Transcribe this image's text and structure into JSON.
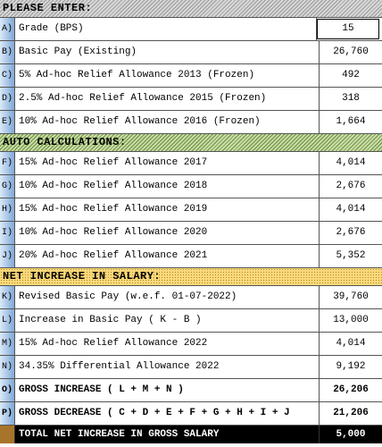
{
  "sections": [
    {
      "title": "PLEASE ENTER:",
      "style": "gray",
      "rows": [
        {
          "letter": "A)",
          "label": "Grade (BPS)",
          "value": "15"
        },
        {
          "letter": "B)",
          "label": "Basic Pay (Existing)",
          "value": "26,760"
        },
        {
          "letter": "C)",
          "label": "5% Ad-hoc Relief Allowance 2013 (Frozen)",
          "value": "492"
        },
        {
          "letter": "D)",
          "label": "2.5% Ad-hoc Relief Allowance 2015 (Frozen)",
          "value": "318"
        },
        {
          "letter": "E)",
          "label": "10% Ad-hoc Relief Allowance 2016 (Frozen)",
          "value": "1,664"
        }
      ]
    },
    {
      "title": "AUTO CALCULATIONS:",
      "style": "green",
      "rows": [
        {
          "letter": "F)",
          "label": "15% Ad-hoc Relief Allowance 2017",
          "value": "4,014"
        },
        {
          "letter": "G)",
          "label": "10% Ad-hoc Relief Allowance 2018",
          "value": "2,676"
        },
        {
          "letter": "H)",
          "label": "15% Ad-hoc Relief Allowance 2019",
          "value": "4,014"
        },
        {
          "letter": "I)",
          "label": "10% Ad-hoc Relief Allowance 2020",
          "value": "2,676"
        },
        {
          "letter": "J)",
          "label": "20% Ad-hoc Relief Allowance 2021",
          "value": "5,352"
        }
      ]
    },
    {
      "title": "NET INCREASE IN SALARY:",
      "style": "yellow",
      "rows": [
        {
          "letter": "K)",
          "label": "Revised Basic Pay (w.e.f. 01-07-2022)",
          "value": "39,760"
        },
        {
          "letter": "L)",
          "label": "Increase in Basic Pay ( K - B )",
          "value": "13,000"
        },
        {
          "letter": "M)",
          "label": "15% Ad-hoc Relief Allowance 2022",
          "value": "4,014"
        },
        {
          "letter": "N)",
          "label": "34.35% Differential Allowance 2022",
          "value": "9,192"
        },
        {
          "letter": "O)",
          "label": "GROSS INCREASE ( L + M + N )",
          "value": "26,206"
        },
        {
          "letter": "P)",
          "label": "GROSS DECREASE ( C + D + E + F + G + H + I + J",
          "value": "21,206"
        }
      ]
    }
  ],
  "total": {
    "label": "TOTAL NET INCREASE IN GROSS SALARY",
    "value": "5,000"
  }
}
